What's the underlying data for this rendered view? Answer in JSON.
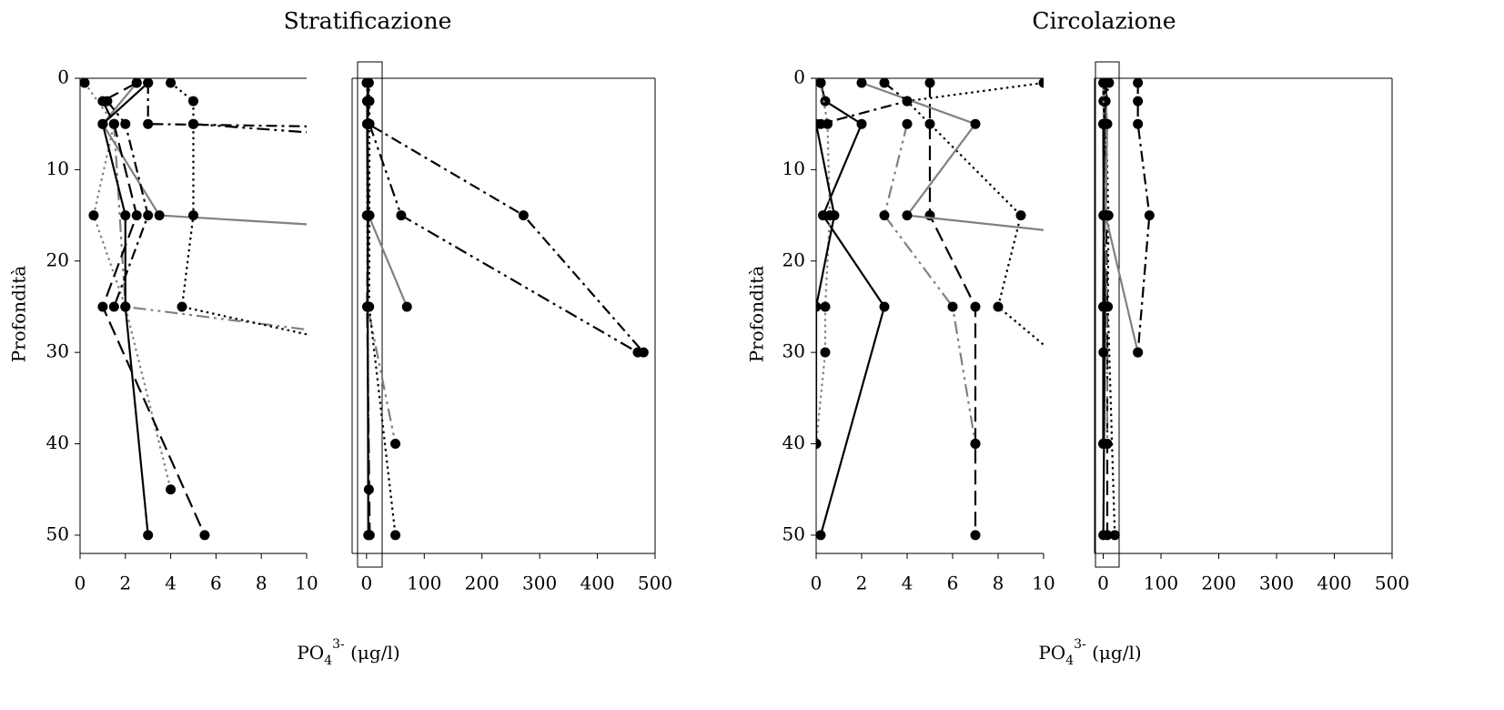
{
  "chart_data": [
    {
      "type": "line",
      "title": "Stratificazione",
      "ylabel": "Profondità",
      "xlabel": {
        "base": "PO",
        "sub": "4",
        "sup": "3-",
        "unit": " (μg/l)"
      },
      "ylim": [
        0,
        52
      ],
      "yticks": [
        0,
        10,
        20,
        30,
        40,
        50
      ],
      "y_inverted": true,
      "panels": [
        {
          "xlim": [
            0,
            10
          ],
          "xticks": [
            0,
            2,
            4,
            6,
            8,
            10
          ]
        },
        {
          "xlim": [
            -25,
            500
          ],
          "xticks": [
            0,
            100,
            200,
            300,
            400,
            500
          ]
        }
      ],
      "series": [
        {
          "color": "#000000",
          "dash": "dashdot",
          "x": [
            3,
            3,
            272,
            480
          ],
          "y": [
            0.5,
            5,
            15,
            30
          ]
        },
        {
          "color": "#000000",
          "dash": "dashdotdot",
          "x": [
            5,
            60,
            470
          ],
          "y": [
            5,
            15,
            30
          ]
        },
        {
          "color": "#808080",
          "dash": "solid",
          "x": [
            2.5,
            1,
            3.5,
            70
          ],
          "y": [
            0.5,
            5,
            15,
            25
          ]
        },
        {
          "color": "#808080",
          "dash": "dashdotdot",
          "x": [
            1.5,
            2,
            50
          ],
          "y": [
            5,
            25,
            40
          ]
        },
        {
          "color": "#000000",
          "dash": "dot",
          "x": [
            4,
            5,
            5,
            5,
            4.5,
            50
          ],
          "y": [
            0.5,
            2.5,
            5,
            15,
            25,
            50
          ]
        },
        {
          "color": "#808080",
          "dash": "dot",
          "x": [
            0.2,
            1.5,
            0.6,
            2,
            4
          ],
          "y": [
            0.5,
            5,
            15,
            25,
            45
          ]
        },
        {
          "color": "#000000",
          "dash": "solid",
          "x": [
            3,
            1,
            2,
            2,
            3
          ],
          "y": [
            0.5,
            5,
            15,
            25,
            50
          ]
        },
        {
          "color": "#000000",
          "dash": "dash",
          "x": [
            2.5,
            1,
            1.5,
            2.5,
            1,
            5.5
          ],
          "y": [
            0.5,
            2.5,
            5,
            15,
            25,
            50
          ]
        },
        {
          "color": "#000000",
          "dash": "dashdot",
          "x": [
            1.2,
            2,
            3,
            1.5
          ],
          "y": [
            2.5,
            5,
            15,
            25
          ]
        }
      ]
    },
    {
      "type": "line",
      "title": "Circolazione",
      "ylabel": "Profondità",
      "xlabel": {
        "base": "PO",
        "sub": "4",
        "sup": "3-",
        "unit": " (μg/l)"
      },
      "ylim": [
        0,
        52
      ],
      "yticks": [
        0,
        10,
        20,
        30,
        40,
        50
      ],
      "y_inverted": true,
      "panels": [
        {
          "xlim": [
            0,
            10
          ],
          "xticks": [
            0,
            2,
            4,
            6,
            8,
            10
          ]
        },
        {
          "xlim": [
            -15,
            500
          ],
          "xticks": [
            0,
            100,
            200,
            300,
            400,
            500
          ]
        }
      ],
      "series": [
        {
          "color": "#000000",
          "dash": "dot",
          "x": [
            10,
            4,
            9,
            8,
            20
          ],
          "y": [
            0.5,
            2.5,
            15,
            25,
            50
          ]
        },
        {
          "color": "#000000",
          "dash": "dashdot",
          "x": [
            60,
            60,
            60,
            80,
            60
          ],
          "y": [
            0.5,
            2.5,
            5,
            15,
            30
          ]
        },
        {
          "color": "#000000",
          "dash": "dash",
          "x": [
            5,
            5,
            5,
            7,
            7,
            7
          ],
          "y": [
            0.5,
            5,
            15,
            25,
            40,
            50
          ]
        },
        {
          "color": "#808080",
          "dash": "solid",
          "x": [
            2,
            7,
            4,
            60
          ],
          "y": [
            0.5,
            5,
            15,
            30
          ]
        },
        {
          "color": "#808080",
          "dash": "dashdotdot",
          "x": [
            4,
            3,
            6,
            7
          ],
          "y": [
            5,
            15,
            25,
            40
          ]
        },
        {
          "color": "#000000",
          "dash": "solid",
          "x": [
            0.2,
            0.4,
            2,
            0.3,
            3,
            0.2
          ],
          "y": [
            0.5,
            2.5,
            5,
            15,
            25,
            50
          ]
        },
        {
          "color": "#000000",
          "dash": "dashdot",
          "x": [
            3,
            4,
            0.2
          ],
          "y": [
            0.5,
            2.5,
            5
          ]
        },
        {
          "color": "#808080",
          "dash": "dot",
          "x": [
            0.2,
            0.5,
            0.6,
            0.4,
            0.4,
            0
          ],
          "y": [
            0.5,
            5,
            15,
            25,
            30,
            40
          ]
        },
        {
          "color": "#000000",
          "dash": "solid",
          "x": [
            0,
            0.8,
            0,
            0
          ],
          "y": [
            5,
            15,
            25,
            40
          ]
        }
      ]
    }
  ]
}
